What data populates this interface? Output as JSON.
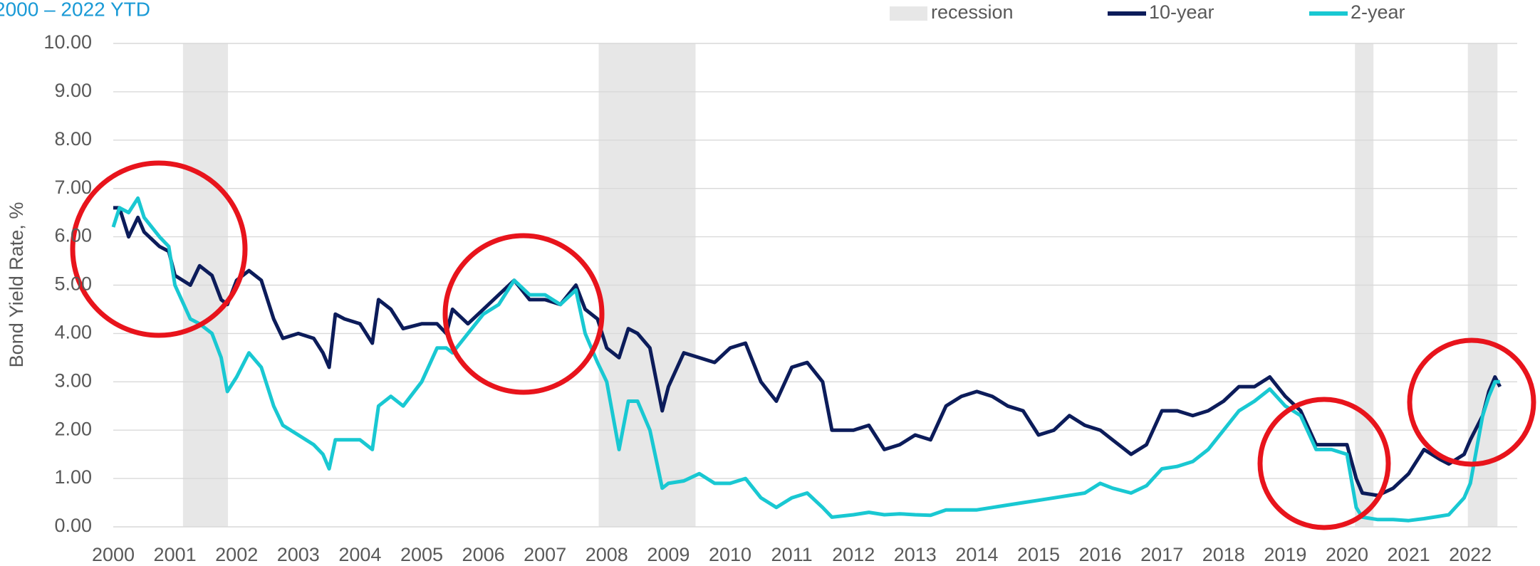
{
  "chart_data": {
    "type": "line",
    "title": "2000 – 2022 YTD",
    "y_label": "Bond Yield Rate, %",
    "xlim": [
      2000,
      2022.76
    ],
    "xticks": [
      2000,
      2001,
      2002,
      2003,
      2004,
      2005,
      2006,
      2007,
      2008,
      2009,
      2010,
      2011,
      2012,
      2013,
      2014,
      2015,
      2016,
      2017,
      2018,
      2019,
      2020,
      2021,
      2022
    ],
    "ylim": [
      0,
      10
    ],
    "yticks": [
      {
        "value": 0,
        "label": "0.00"
      },
      {
        "value": 1,
        "label": "1.00"
      },
      {
        "value": 2,
        "label": "2.00"
      },
      {
        "value": 3,
        "label": "3.00"
      },
      {
        "value": 4,
        "label": "4.00"
      },
      {
        "value": 5,
        "label": "5.00"
      },
      {
        "value": 6,
        "label": "6.00"
      },
      {
        "value": 7,
        "label": "7.00"
      },
      {
        "value": 8,
        "label": "8.00"
      },
      {
        "value": 9,
        "label": "9.00"
      },
      {
        "value": 10,
        "label": "10.00"
      }
    ],
    "grid": true,
    "legend": "top-right",
    "recessions": {
      "name": "recession",
      "color": "#e7e7e7",
      "spans": [
        [
          2001.13,
          2001.86
        ],
        [
          2007.87,
          2009.44
        ],
        [
          2020.13,
          2020.43
        ],
        [
          2021.96,
          2022.44
        ]
      ]
    },
    "x": [
      2000.0,
      2000.1,
      2000.25,
      2000.4,
      2000.5,
      2000.75,
      2000.9,
      2001.0,
      2001.25,
      2001.4,
      2001.6,
      2001.75,
      2001.85,
      2002.0,
      2002.2,
      2002.4,
      2002.6,
      2002.75,
      2003.0,
      2003.25,
      2003.4,
      2003.5,
      2003.6,
      2003.75,
      2004.0,
      2004.2,
      2004.3,
      2004.5,
      2004.7,
      2005.0,
      2005.25,
      2005.4,
      2005.5,
      2005.75,
      2006.0,
      2006.25,
      2006.5,
      2006.75,
      2007.0,
      2007.25,
      2007.5,
      2007.65,
      2007.85,
      2008.0,
      2008.2,
      2008.35,
      2008.5,
      2008.7,
      2008.9,
      2009.0,
      2009.25,
      2009.5,
      2009.75,
      2010.0,
      2010.25,
      2010.5,
      2010.75,
      2011.0,
      2011.25,
      2011.5,
      2011.65,
      2012.0,
      2012.25,
      2012.5,
      2012.75,
      2013.0,
      2013.25,
      2013.5,
      2013.75,
      2014.0,
      2014.25,
      2014.5,
      2014.75,
      2015.0,
      2015.25,
      2015.5,
      2015.75,
      2016.0,
      2016.2,
      2016.5,
      2016.75,
      2017.0,
      2017.25,
      2017.5,
      2017.75,
      2018.0,
      2018.25,
      2018.5,
      2018.75,
      2019.0,
      2019.25,
      2019.5,
      2019.75,
      2020.0,
      2020.15,
      2020.25,
      2020.5,
      2020.75,
      2021.0,
      2021.25,
      2021.5,
      2021.65,
      2021.9,
      2022.0,
      2022.2,
      2022.3,
      2022.4,
      2022.48
    ],
    "series": [
      {
        "name": "10-year",
        "color": "#0c1c5a",
        "values": [
          6.6,
          6.6,
          6.0,
          6.4,
          6.1,
          5.8,
          5.7,
          5.2,
          5.0,
          5.4,
          5.2,
          4.7,
          4.6,
          5.1,
          5.3,
          5.1,
          4.3,
          3.9,
          4.0,
          3.9,
          3.6,
          3.3,
          4.4,
          4.3,
          4.2,
          3.8,
          4.7,
          4.5,
          4.1,
          4.2,
          4.2,
          4.0,
          4.5,
          4.2,
          4.5,
          4.8,
          5.1,
          4.7,
          4.7,
          4.6,
          5.0,
          4.5,
          4.3,
          3.7,
          3.5,
          4.1,
          4.0,
          3.7,
          2.4,
          2.9,
          3.6,
          3.5,
          3.4,
          3.7,
          3.8,
          3.0,
          2.6,
          3.3,
          3.4,
          3.0,
          2.0,
          2.0,
          2.1,
          1.6,
          1.7,
          1.9,
          1.8,
          2.5,
          2.7,
          2.8,
          2.7,
          2.5,
          2.4,
          1.9,
          2.0,
          2.3,
          2.1,
          2.0,
          1.8,
          1.5,
          1.7,
          2.4,
          2.4,
          2.3,
          2.4,
          2.6,
          2.9,
          2.9,
          3.1,
          2.7,
          2.4,
          1.7,
          1.7,
          1.7,
          1.0,
          0.7,
          0.65,
          0.8,
          1.1,
          1.6,
          1.4,
          1.3,
          1.5,
          1.8,
          2.3,
          2.8,
          3.1,
          2.9
        ]
      },
      {
        "name": "2-year",
        "color": "#19c8d2",
        "values": [
          6.2,
          6.6,
          6.5,
          6.8,
          6.4,
          6.0,
          5.8,
          5.0,
          4.3,
          4.2,
          4.0,
          3.5,
          2.8,
          3.1,
          3.6,
          3.3,
          2.5,
          2.1,
          1.9,
          1.7,
          1.5,
          1.2,
          1.8,
          1.8,
          1.8,
          1.6,
          2.5,
          2.7,
          2.5,
          3.0,
          3.7,
          3.7,
          3.6,
          4.0,
          4.4,
          4.6,
          5.1,
          4.8,
          4.8,
          4.6,
          4.9,
          4.0,
          3.4,
          3.0,
          1.6,
          2.6,
          2.6,
          2.0,
          0.8,
          0.9,
          0.95,
          1.1,
          0.9,
          0.9,
          1.0,
          0.6,
          0.4,
          0.6,
          0.7,
          0.4,
          0.2,
          0.25,
          0.3,
          0.25,
          0.27,
          0.25,
          0.24,
          0.35,
          0.35,
          0.35,
          0.4,
          0.45,
          0.5,
          0.55,
          0.6,
          0.65,
          0.7,
          0.9,
          0.8,
          0.7,
          0.85,
          1.2,
          1.25,
          1.35,
          1.6,
          2.0,
          2.4,
          2.6,
          2.85,
          2.5,
          2.3,
          1.6,
          1.6,
          1.5,
          0.4,
          0.2,
          0.15,
          0.15,
          0.13,
          0.17,
          0.22,
          0.25,
          0.6,
          0.9,
          2.3,
          2.7,
          3.0,
          3.0
        ]
      }
    ]
  }
}
